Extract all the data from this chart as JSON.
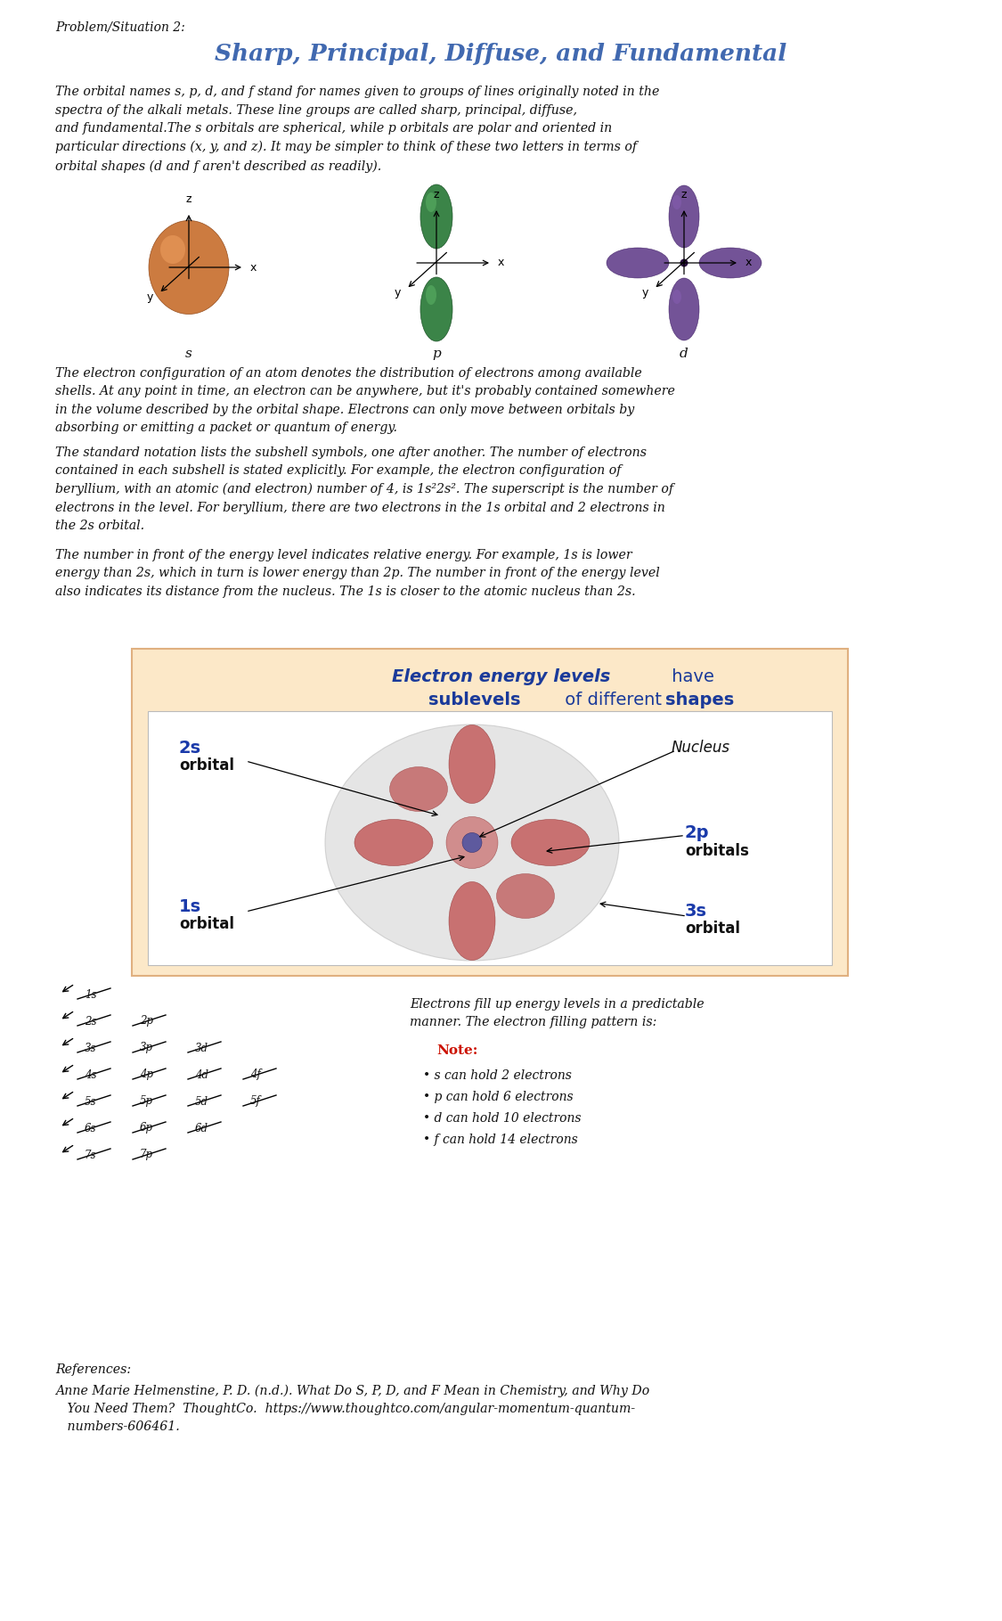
{
  "title_small": "Problem/Situation 2:",
  "title_main": "Sharp, Principal, Diffuse, and Fundamental",
  "para1": "The orbital names s, p, d, and f stand for names given to groups of lines originally noted in the\nspectra of the alkali metals. These line groups are called sharp, principal, diffuse,\nand fundamental.The s orbitals are spherical, while p orbitals are polar and oriented in\nparticular directions (x, y, and z). It may be simpler to think of these two letters in terms of\norbital shapes (d and f aren't described as readily).",
  "para2a": "The electron configuration of an atom denotes the distribution of electrons among available\nshells. At any point in time, an electron can be anywhere, but it's probably contained somewhere\nin the volume described by the orbital shape. Electrons can only move between orbitals by\nabsorbing or emitting a packet or quantum of energy.",
  "para2b": "The standard notation lists the subshell symbols, one after another. The number of electrons\ncontained in each subshell is stated explicitly. For example, the electron configuration of\nberyllium, with an atomic (and electron) number of 4, is 1s²2s². The superscript is the number of\nelectrons in the level. For beryllium, there are two electrons in the 1s orbital and 2 electrons in\nthe 2s orbital.",
  "para3": "The number in front of the energy level indicates relative energy. For example, 1s is lower\nenergy than 2s, which in turn is lower energy than 2p. The number in front of the energy level\nalso indicates its distance from the nucleus. The 1s is closer to the atomic nucleus than 2s.",
  "box_title_bold": "Electron energy levels",
  "box_title_rest1": " have",
  "box_title2_bold": "sublevels",
  "box_title2_mid": " of different ",
  "box_title2_end": "shapes",
  "fill_title": "Electrons fill up energy levels in a predictable\nmanner. The electron filling pattern is:",
  "note_title": "Note:",
  "note_bullets": [
    "• s can hold 2 electrons",
    "• p can hold 6 electrons",
    "• d can hold 10 electrons",
    "• f can hold 14 electrons"
  ],
  "ref_title": "References:",
  "ref_text": "Anne Marie Helmenstine, P. D. (n.d.). What Do S, P, D, and F Mean in Chemistry, and Why Do\n   You Need Them?  ThoughtCo.  https://www.thoughtco.com/angular-momentum-quantum-\n   numbers-606461.",
  "bg_color": "#ffffff",
  "title_color": "#4169b0",
  "box_bg": "#fce8c8",
  "box_border": "#e0b080",
  "box_title_blue": "#1a3a9a",
  "box_label_blue": "#1a3aaa",
  "note_red": "#cc1100",
  "text_color": "#111111",
  "filling_levels": [
    [
      "1s"
    ],
    [
      "2s",
      "2p"
    ],
    [
      "3s",
      "3p",
      "3d"
    ],
    [
      "4s",
      "4p",
      "4d",
      "4f"
    ],
    [
      "5s",
      "5p",
      "5d",
      "5f"
    ],
    [
      "6s",
      "6p",
      "6d"
    ],
    [
      "7s",
      "7p"
    ]
  ]
}
